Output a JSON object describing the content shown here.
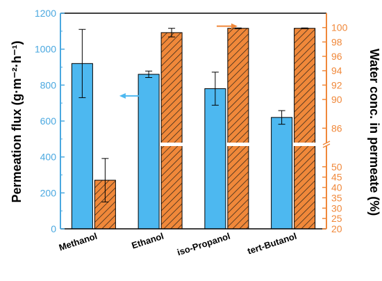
{
  "chart_data": {
    "type": "bar",
    "categories": [
      "Methanol",
      "Ethanol",
      "iso-Propanol",
      "tert-Butanol"
    ],
    "ylabel_left": "Permeation flux (g·m⁻²·h⁻¹)",
    "ylabel_right": "Water conc. in permeate (%)",
    "left_axis": {
      "range": [
        0,
        1200
      ],
      "ticks": [
        0,
        200,
        400,
        600,
        800,
        1000,
        1200
      ],
      "color": "#4aa8e0"
    },
    "right_axis": {
      "segments": [
        {
          "range": [
            20,
            60
          ],
          "ticks": [
            20,
            25,
            30,
            35,
            40,
            45,
            50
          ]
        },
        {
          "range": [
            84,
            102
          ],
          "ticks": [
            86,
            90,
            92,
            94,
            96,
            98,
            100
          ]
        }
      ],
      "break": true,
      "color": "#f0883a"
    },
    "series": [
      {
        "axis": "left",
        "color": "#4db8f0",
        "hatched": false,
        "values": [
          920,
          860,
          780,
          620
        ],
        "errors": [
          190,
          18,
          92,
          38
        ]
      },
      {
        "axis": "right",
        "color": "#f0883a",
        "hatched": true,
        "values": [
          43.5,
          99.3,
          99.9,
          99.9
        ],
        "errors": [
          10.5,
          0.6,
          0.05,
          0.05
        ]
      }
    ],
    "annotations": [
      {
        "type": "arrow",
        "direction": "left",
        "category_index": 1,
        "color": "#4db8f0"
      },
      {
        "type": "arrow",
        "direction": "right",
        "category_index": 2,
        "color": "#f0883a"
      }
    ]
  }
}
